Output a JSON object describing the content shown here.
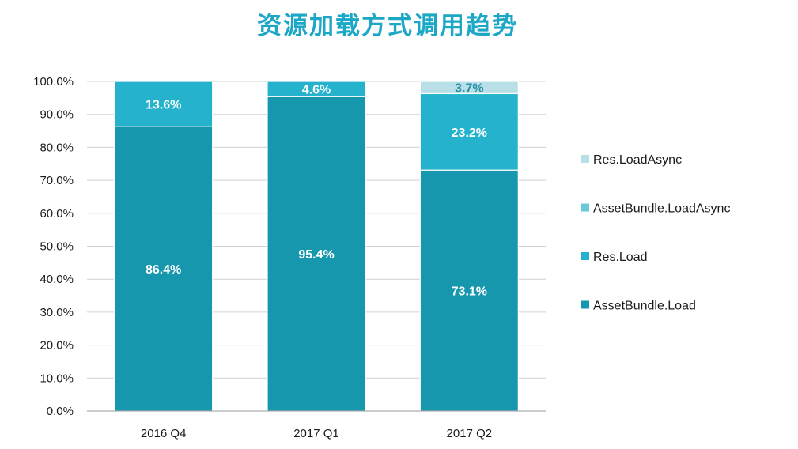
{
  "chart_data": {
    "type": "bar",
    "stacked": true,
    "title": "资源加载方式调用趋势",
    "xlabel": "",
    "ylabel": "",
    "ylim": [
      0,
      100
    ],
    "y_ticks": [
      "0.0%",
      "10.0%",
      "20.0%",
      "30.0%",
      "40.0%",
      "50.0%",
      "60.0%",
      "70.0%",
      "80.0%",
      "90.0%",
      "100.0%"
    ],
    "categories": [
      "2016 Q4",
      "2017 Q1",
      "2017 Q2"
    ],
    "series": [
      {
        "name": "AssetBundle.Load",
        "color": "#1797ad",
        "label_color": "#ffffff",
        "values": [
          86.4,
          95.4,
          73.1
        ],
        "labels": [
          "86.4%",
          "95.4%",
          "73.1%"
        ]
      },
      {
        "name": "Res.Load",
        "color": "#24b2cd",
        "label_color": "#ffffff",
        "values": [
          13.6,
          4.6,
          23.2
        ],
        "labels": [
          "13.6%",
          "4.6%",
          "23.2%"
        ]
      },
      {
        "name": "AssetBundle.LoadAsync",
        "color": "#6cc8d8",
        "label_color": "#ffffff",
        "values": [
          0,
          0,
          0
        ],
        "labels": [
          "",
          "",
          ""
        ]
      },
      {
        "name": "Res.LoadAsync",
        "color": "#b9e0e8",
        "label_color": "#2a8fa5",
        "values": [
          0,
          0,
          3.7
        ],
        "labels": [
          "",
          "",
          "3.7%"
        ]
      }
    ],
    "legend_position": "right",
    "legend_order": [
      "Res.LoadAsync",
      "AssetBundle.LoadAsync",
      "Res.Load",
      "AssetBundle.Load"
    ],
    "grid": true,
    "colors": {
      "title": "#1ba7c5",
      "grid": "#d0d0d0",
      "axis": "#9a9a9a"
    }
  }
}
